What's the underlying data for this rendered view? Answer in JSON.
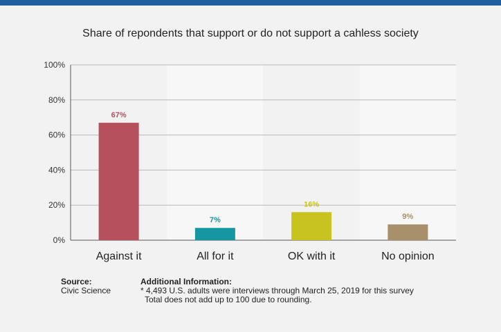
{
  "header": {
    "accent_color": "#1f5f9e"
  },
  "chart_data": {
    "type": "bar",
    "title": "Share of repondents that support or do not support a cahless society",
    "categories": [
      "Against it",
      "All for it",
      "OK with it",
      "No opinion"
    ],
    "values": [
      67,
      7,
      16,
      9
    ],
    "value_labels": [
      "67%",
      "7%",
      "16%",
      "9%"
    ],
    "colors": [
      "#b5505c",
      "#1596a0",
      "#c9c31f",
      "#a8916a"
    ],
    "ylim": [
      0,
      100
    ],
    "yticks": [
      0,
      20,
      40,
      60,
      80,
      100
    ],
    "ytick_labels": [
      "0%",
      "20%",
      "40%",
      "60%",
      "80%",
      "100%"
    ],
    "xlabel": "",
    "ylabel": "",
    "grid": true,
    "legend": "none"
  },
  "footer": {
    "source_heading": "Source:",
    "source_value": "Civic Science",
    "info_heading": "Additional Information:",
    "info_line1": "* 4,493 U.S. adults were interviews through March 25, 2019 for this survey",
    "info_line2": "Total does not add up to 100 due to rounding."
  }
}
